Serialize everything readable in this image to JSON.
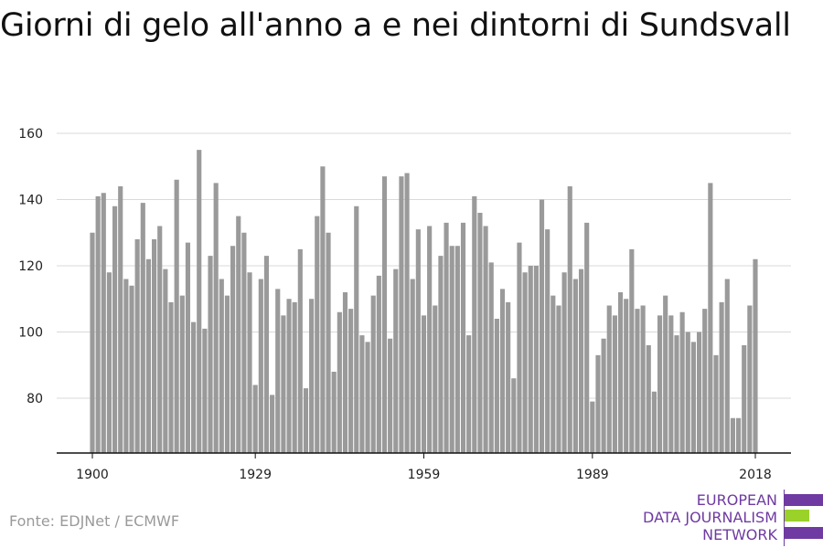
{
  "title": "Giorni di gelo all'anno a e nei dintorni di Sundsvall",
  "source": "Fonte: EDJNet / ECMWF",
  "logo": {
    "line1": "EUROPEAN",
    "line2": "DATA JOURNALISM",
    "line3": "NETWORK",
    "purple": "#6f3aa1",
    "green": "#9bd22a"
  },
  "colors": {
    "bar": "#9a9a9a",
    "grid": "#d9d9d9",
    "axis": "#111111"
  },
  "chart_data": {
    "type": "bar",
    "title": "Giorni di gelo all'anno a e nei dintorni di Sundsvall",
    "xlabel": "",
    "ylabel": "",
    "x_start": 1900,
    "x_end": 2018,
    "xticks": [
      1900,
      1929,
      1959,
      1989,
      2018
    ],
    "yticks": [
      80,
      100,
      120,
      140,
      160
    ],
    "ylim": [
      66,
      164
    ],
    "grid": true,
    "values": [
      130,
      141,
      142,
      118,
      138,
      144,
      116,
      114,
      128,
      139,
      122,
      128,
      132,
      119,
      109,
      146,
      111,
      127,
      103,
      155,
      101,
      123,
      145,
      116,
      111,
      126,
      135,
      130,
      118,
      84,
      116,
      123,
      81,
      113,
      105,
      110,
      109,
      125,
      83,
      110,
      135,
      150,
      130,
      88,
      106,
      112,
      107,
      138,
      99,
      97,
      111,
      117,
      147,
      98,
      119,
      147,
      148,
      116,
      131,
      105,
      132,
      108,
      123,
      133,
      126,
      126,
      133,
      99,
      141,
      136,
      132,
      121,
      104,
      113,
      109,
      86,
      127,
      118,
      120,
      120,
      140,
      131,
      111,
      108,
      118,
      144,
      116,
      119,
      133,
      79,
      93,
      98,
      108,
      105,
      112,
      110,
      125,
      107,
      108,
      96,
      82,
      105,
      111,
      105,
      99,
      106,
      100,
      97,
      100,
      107,
      145,
      93,
      109,
      116,
      74,
      74,
      96,
      108,
      122
    ]
  }
}
